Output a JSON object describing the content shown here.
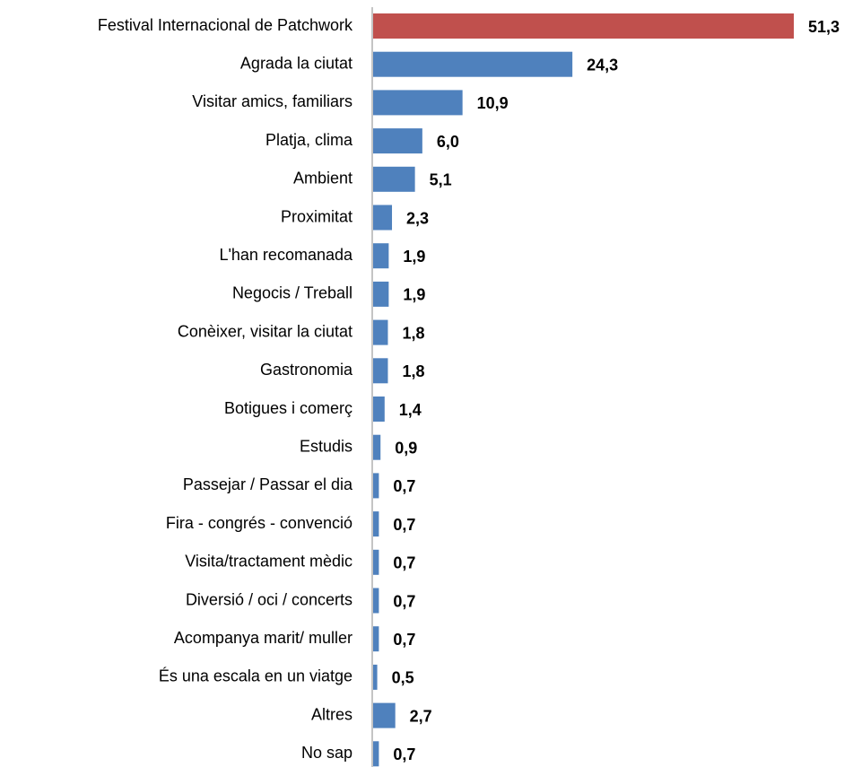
{
  "chart_data": {
    "type": "barh",
    "categories": [
      "Festival Internacional de Patchwork",
      "Agrada la ciutat",
      "Visitar amics, familiars",
      "Platja, clima",
      "Ambient",
      "Proximitat",
      "L'han recomanada",
      "Negocis / Treball",
      "Conèixer, visitar la ciutat",
      "Gastronomia",
      "Botigues i comerç",
      "Estudis",
      "Passejar / Passar el dia",
      "Fira - congrés - convenció",
      "Visita/tractament mèdic",
      "Diversió / oci / concerts",
      "Acompanya marit/ muller",
      "És una escala en un viatge",
      "Altres",
      "No sap"
    ],
    "values": [
      51.3,
      24.3,
      10.9,
      6.0,
      5.1,
      2.3,
      1.9,
      1.9,
      1.8,
      1.8,
      1.4,
      0.9,
      0.7,
      0.7,
      0.7,
      0.7,
      0.7,
      0.5,
      2.7,
      0.7
    ],
    "value_labels": [
      "51,3",
      "24,3",
      "10,9",
      "6,0",
      "5,1",
      "2,3",
      "1,9",
      "1,9",
      "1,8",
      "1,8",
      "1,4",
      "0,9",
      "0,7",
      "0,7",
      "0,7",
      "0,7",
      "0,7",
      "0,5",
      "2,7",
      "0,7"
    ],
    "colors": [
      "#c0504d",
      "#4f81bd",
      "#4f81bd",
      "#4f81bd",
      "#4f81bd",
      "#4f81bd",
      "#4f81bd",
      "#4f81bd",
      "#4f81bd",
      "#4f81bd",
      "#4f81bd",
      "#4f81bd",
      "#4f81bd",
      "#4f81bd",
      "#4f81bd",
      "#4f81bd",
      "#4f81bd",
      "#4f81bd",
      "#4f81bd",
      "#4f81bd"
    ]
  }
}
